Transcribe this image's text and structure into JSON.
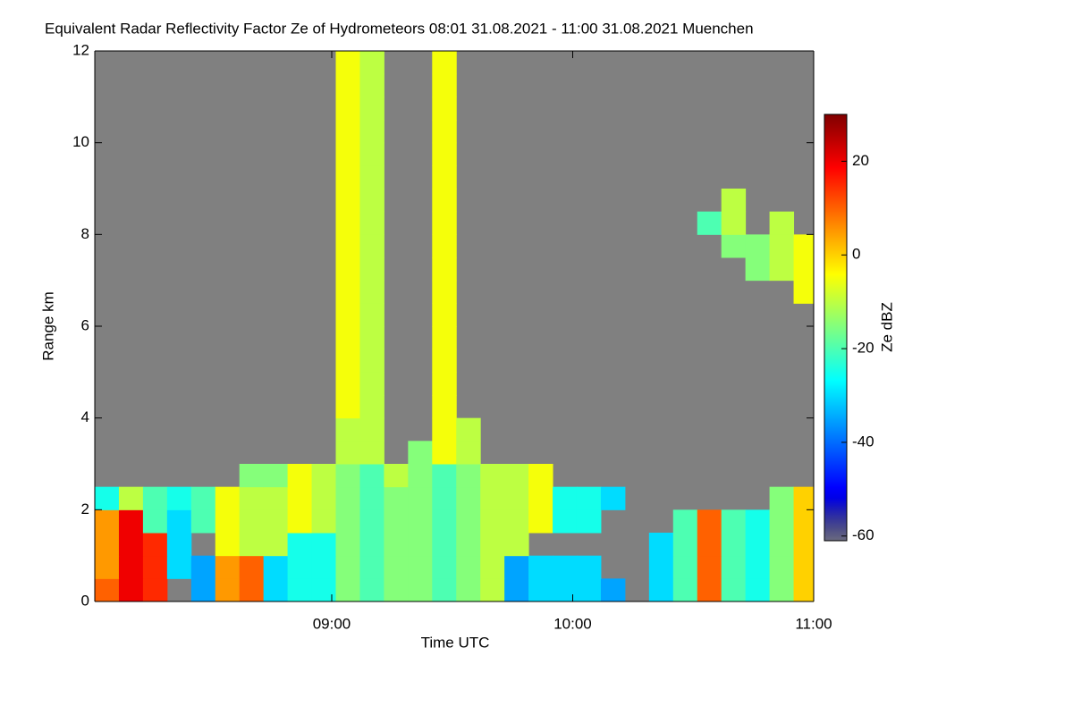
{
  "chart_data": {
    "type": "heatmap",
    "title": "Equivalent Radar Reflectivity Factor Ze of Hydrometeors   08:01 31.08.2021 - 11:00 31.08.2021 Muenchen",
    "x_label": "Time UTC",
    "y_label": "Range km",
    "colorbar_label": "Ze dBZ",
    "xlim": [
      "08:01",
      "11:00"
    ],
    "xticks": [
      "09:00",
      "10:00",
      "11:00"
    ],
    "ylim": [
      0,
      12
    ],
    "yticks": [
      0,
      2,
      4,
      6,
      8,
      10,
      12
    ],
    "zlim": [
      -61,
      30
    ],
    "zticks": [
      -60,
      -40,
      -20,
      0,
      20
    ],
    "background": "#808080",
    "x": [
      "08:01",
      "08:07",
      "08:13",
      "08:19",
      "08:25",
      "08:31",
      "08:37",
      "08:43",
      "08:49",
      "08:55",
      "09:01",
      "09:07",
      "09:13",
      "09:19",
      "09:25",
      "09:31",
      "09:37",
      "09:43",
      "09:49",
      "09:55",
      "10:01",
      "10:07",
      "10:13",
      "10:19",
      "10:25",
      "10:31",
      "10:37",
      "10:43",
      "10:49",
      "10:55"
    ],
    "y": [
      0,
      0.5,
      1,
      1.5,
      2,
      2.5,
      3,
      3.5,
      4,
      4.5,
      5,
      5.5,
      6,
      6.5,
      7,
      7.5,
      8,
      8.5,
      9,
      9.5,
      10,
      10.5,
      11,
      11.5
    ],
    "z": [
      [
        10,
        20,
        15,
        null,
        -35,
        5,
        10,
        -30,
        -25,
        -25,
        -15,
        -20,
        -15,
        -15,
        -20,
        -15,
        -10,
        -35,
        -30,
        -30,
        -30,
        -35,
        null,
        -30,
        -20,
        10,
        -20,
        -25,
        -15,
        0
      ],
      [
        5,
        20,
        15,
        -30,
        -35,
        5,
        10,
        -30,
        -25,
        -25,
        -15,
        -20,
        -15,
        -15,
        -20,
        -15,
        -10,
        -35,
        -30,
        -30,
        -30,
        null,
        null,
        -30,
        -20,
        10,
        -20,
        -25,
        -15,
        0
      ],
      [
        5,
        20,
        15,
        -30,
        null,
        -5,
        -10,
        -10,
        -25,
        -25,
        -15,
        -20,
        -15,
        -15,
        -20,
        -15,
        -10,
        -10,
        null,
        null,
        null,
        null,
        null,
        -30,
        -20,
        10,
        -20,
        -25,
        -15,
        0
      ],
      [
        5,
        20,
        -20,
        -30,
        -20,
        -5,
        -10,
        -10,
        -5,
        -10,
        -15,
        -20,
        -15,
        -15,
        -20,
        -15,
        -10,
        -10,
        -5,
        -25,
        -25,
        null,
        null,
        null,
        -20,
        10,
        -20,
        -25,
        -15,
        0
      ],
      [
        -25,
        -10,
        -20,
        -25,
        -20,
        -5,
        -10,
        -10,
        -5,
        -10,
        -15,
        -20,
        -15,
        -15,
        -20,
        -15,
        -10,
        -10,
        -5,
        -25,
        -25,
        -30,
        null,
        null,
        null,
        null,
        null,
        null,
        -15,
        0
      ],
      [
        null,
        null,
        null,
        null,
        null,
        null,
        -15,
        -15,
        -5,
        -10,
        -15,
        -20,
        -10,
        -15,
        -20,
        -15,
        -10,
        -10,
        -5,
        null,
        null,
        null,
        null,
        null,
        null,
        null,
        null,
        null,
        null,
        null
      ],
      [
        null,
        null,
        null,
        null,
        null,
        null,
        null,
        null,
        null,
        null,
        -10,
        -10,
        null,
        -15,
        -5,
        -10,
        null,
        null,
        null,
        null,
        null,
        null,
        null,
        null,
        null,
        null,
        null,
        null,
        null,
        null
      ],
      [
        null,
        null,
        null,
        null,
        null,
        null,
        null,
        null,
        null,
        null,
        -10,
        -10,
        null,
        null,
        -5,
        -10,
        null,
        null,
        null,
        null,
        null,
        null,
        null,
        null,
        null,
        null,
        null,
        null,
        null,
        null
      ],
      [
        null,
        null,
        null,
        null,
        null,
        null,
        null,
        null,
        null,
        null,
        -5,
        -10,
        null,
        null,
        -5,
        null,
        null,
        null,
        null,
        null,
        null,
        null,
        null,
        null,
        null,
        null,
        null,
        null,
        null,
        null
      ],
      [
        null,
        null,
        null,
        null,
        null,
        null,
        null,
        null,
        null,
        null,
        -5,
        -10,
        null,
        null,
        -5,
        null,
        null,
        null,
        null,
        null,
        null,
        null,
        null,
        null,
        null,
        null,
        null,
        null,
        null,
        null
      ],
      [
        null,
        null,
        null,
        null,
        null,
        null,
        null,
        null,
        null,
        null,
        -5,
        -10,
        null,
        null,
        -5,
        null,
        null,
        null,
        null,
        null,
        null,
        null,
        null,
        null,
        null,
        null,
        null,
        null,
        null,
        null
      ],
      [
        null,
        null,
        null,
        null,
        null,
        null,
        null,
        null,
        null,
        null,
        -5,
        -10,
        null,
        null,
        -5,
        null,
        null,
        null,
        null,
        null,
        null,
        null,
        null,
        null,
        null,
        null,
        null,
        null,
        null,
        null
      ],
      [
        null,
        null,
        null,
        null,
        null,
        null,
        null,
        null,
        null,
        null,
        -5,
        -10,
        null,
        null,
        -5,
        null,
        null,
        null,
        null,
        null,
        null,
        null,
        null,
        null,
        null,
        null,
        null,
        null,
        null,
        null
      ],
      [
        null,
        null,
        null,
        null,
        null,
        null,
        null,
        null,
        null,
        null,
        -5,
        -10,
        null,
        null,
        -5,
        null,
        null,
        null,
        null,
        null,
        null,
        null,
        null,
        null,
        null,
        null,
        null,
        null,
        null,
        -5
      ],
      [
        null,
        null,
        null,
        null,
        null,
        null,
        null,
        null,
        null,
        null,
        -5,
        -10,
        null,
        null,
        -5,
        null,
        null,
        null,
        null,
        null,
        null,
        null,
        null,
        null,
        null,
        null,
        null,
        -15,
        -10,
        -5
      ],
      [
        null,
        null,
        null,
        null,
        null,
        null,
        null,
        null,
        null,
        null,
        -5,
        -10,
        null,
        null,
        -5,
        null,
        null,
        null,
        null,
        null,
        null,
        null,
        null,
        null,
        null,
        null,
        -15,
        -15,
        -10,
        -5
      ],
      [
        null,
        null,
        null,
        null,
        null,
        null,
        null,
        null,
        null,
        null,
        -5,
        -10,
        null,
        null,
        -5,
        null,
        null,
        null,
        null,
        null,
        null,
        null,
        null,
        null,
        null,
        -20,
        -10,
        null,
        -10,
        null
      ],
      [
        null,
        null,
        null,
        null,
        null,
        null,
        null,
        null,
        null,
        null,
        -5,
        -10,
        null,
        null,
        -5,
        null,
        null,
        null,
        null,
        null,
        null,
        null,
        null,
        null,
        null,
        null,
        -10,
        null,
        null,
        null
      ],
      [
        null,
        null,
        null,
        null,
        null,
        null,
        null,
        null,
        null,
        null,
        -5,
        -10,
        null,
        null,
        -5,
        null,
        null,
        null,
        null,
        null,
        null,
        null,
        null,
        null,
        null,
        null,
        null,
        null,
        null,
        null
      ],
      [
        null,
        null,
        null,
        null,
        null,
        null,
        null,
        null,
        null,
        null,
        -5,
        -10,
        null,
        null,
        -5,
        null,
        null,
        null,
        null,
        null,
        null,
        null,
        null,
        null,
        null,
        null,
        null,
        null,
        null,
        null
      ],
      [
        null,
        null,
        null,
        null,
        null,
        null,
        null,
        null,
        null,
        null,
        -5,
        -10,
        null,
        null,
        -5,
        null,
        null,
        null,
        null,
        null,
        null,
        null,
        null,
        null,
        null,
        null,
        null,
        null,
        null,
        null
      ],
      [
        null,
        null,
        null,
        null,
        null,
        null,
        null,
        null,
        null,
        null,
        -5,
        -10,
        null,
        null,
        -5,
        null,
        null,
        null,
        null,
        null,
        null,
        null,
        null,
        null,
        null,
        null,
        null,
        null,
        null,
        null
      ],
      [
        null,
        null,
        null,
        null,
        null,
        null,
        null,
        null,
        null,
        null,
        -5,
        -10,
        null,
        null,
        -5,
        null,
        null,
        null,
        null,
        null,
        null,
        null,
        null,
        null,
        null,
        null,
        null,
        null,
        null,
        null
      ],
      [
        null,
        null,
        null,
        null,
        null,
        null,
        null,
        null,
        null,
        null,
        -5,
        -10,
        null,
        null,
        -5,
        null,
        null,
        null,
        null,
        null,
        null,
        null,
        null,
        null,
        null,
        null,
        null,
        null,
        null,
        null
      ]
    ]
  }
}
